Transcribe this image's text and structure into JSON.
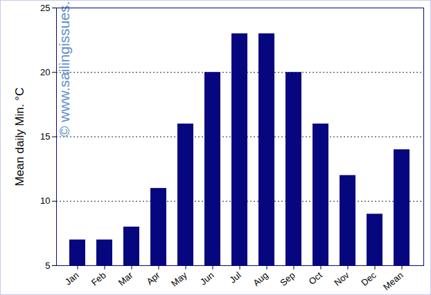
{
  "chart_data": {
    "type": "bar",
    "y_label": "Mean daily Min. °C",
    "categories": [
      "Jan",
      "Feb",
      "Mar",
      "Apr",
      "May",
      "Jun",
      "Jul",
      "Aug",
      "Sep",
      "Oct",
      "Nov",
      "Dec",
      "Mean"
    ],
    "values": [
      7,
      7,
      8,
      11,
      16,
      20,
      23,
      23,
      20,
      16,
      12,
      9,
      14
    ],
    "color": "#06067e",
    "ylim": [
      5,
      25
    ],
    "yticks": [
      5,
      10,
      15,
      20,
      25
    ],
    "grid": true,
    "annotations": [
      "© www.sailingissues.com"
    ]
  }
}
